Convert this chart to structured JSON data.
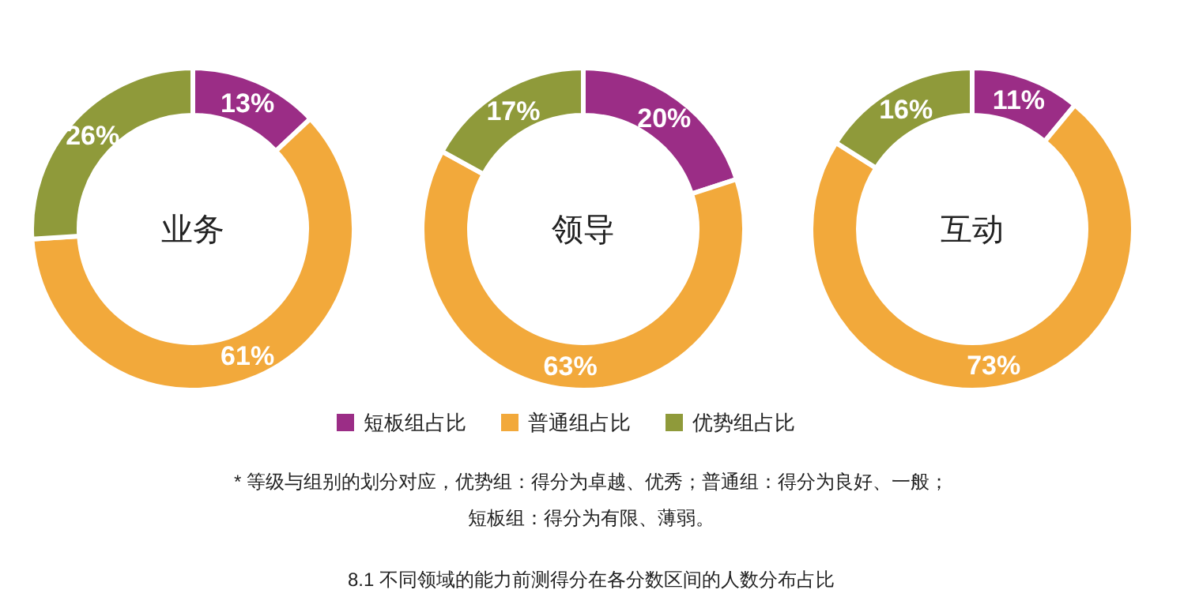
{
  "chart_data": [
    {
      "type": "donut",
      "title": "业务",
      "categories": [
        null,
        null,
        null
      ],
      "values": [
        13,
        61,
        26
      ],
      "value_labels": [
        "13%",
        "61%",
        "26%"
      ],
      "colors": [
        "#9b2d86",
        "#f2a93b",
        "#8f9a3a"
      ]
    },
    {
      "type": "donut",
      "title": "领导",
      "categories": [
        "短板组占比",
        "普通组占比",
        "优势组占比"
      ],
      "values": [
        20,
        63,
        17
      ],
      "value_labels": [
        "20%",
        "63%",
        "17%"
      ],
      "colors": [
        "#9b2d86",
        "#f2a93b",
        "#8f9a3a"
      ],
      "legend": "bottom",
      "annotations": [
        "* 等级与组别的划分对应，优势组：得分为卓越、优秀；普通组：得分为良好、一般；",
        "短板组：得分为有限、薄弱。",
        "8.1 不同领域的能力前测得分在各分数区间的人数分布占比"
      ]
    },
    {
      "type": "donut",
      "title": "互动",
      "categories": [
        null,
        null,
        null
      ],
      "values": [
        11,
        73,
        16
      ],
      "value_labels": [
        "11%",
        "73%",
        "16%"
      ],
      "colors": [
        "#9b2d86",
        "#f2a93b",
        "#8f9a3a"
      ]
    }
  ]
}
